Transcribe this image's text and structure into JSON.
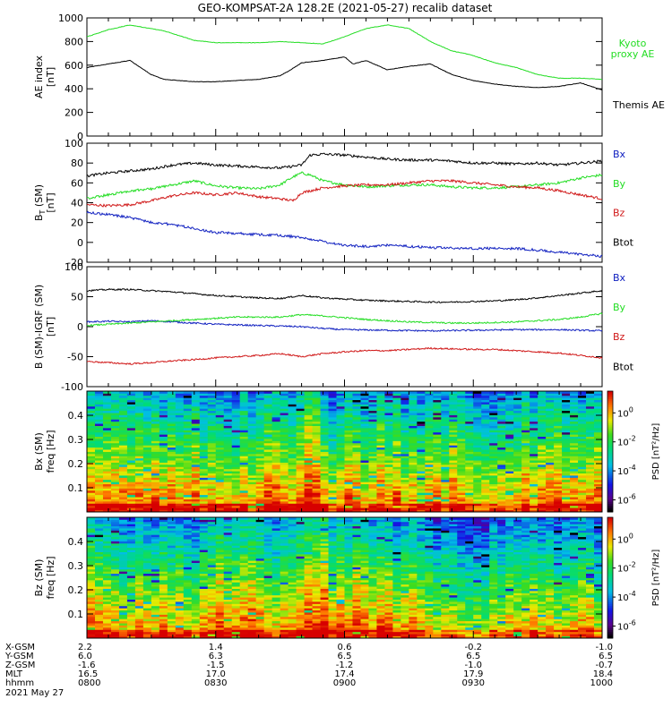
{
  "title": "GEO-KOMPSAT-2A 128.2E (2021-05-27) recalib dataset",
  "colors": {
    "black": "#000000",
    "green": "#22dd22",
    "red": "#d01818",
    "blue": "#1020c0"
  },
  "chart_data": [
    {
      "type": "line",
      "ylabel": [
        "AE index",
        "[nT]"
      ],
      "ylim": [
        0,
        1000
      ],
      "yticks": [
        0,
        200,
        400,
        600,
        800,
        1000
      ],
      "series": [
        {
          "name": "Kyoto proxy AE",
          "label_lines": [
            "Kyoto",
            "proxy AE"
          ],
          "color": "#22dd22",
          "x": [
            0,
            5,
            10,
            18,
            25,
            30,
            40,
            45,
            50,
            55,
            60,
            65,
            70,
            75,
            80,
            85,
            88,
            90,
            95,
            100,
            105,
            110,
            115,
            120
          ],
          "y": [
            840,
            900,
            940,
            890,
            810,
            790,
            790,
            800,
            790,
            780,
            840,
            910,
            940,
            910,
            800,
            720,
            700,
            680,
            620,
            580,
            520,
            490,
            490,
            480
          ]
        },
        {
          "name": "Themis AE",
          "label_lines": [
            "Themis AE"
          ],
          "color": "#000000",
          "x": [
            0,
            5,
            10,
            15,
            18,
            25,
            30,
            35,
            40,
            45,
            47,
            50,
            55,
            60,
            62,
            65,
            70,
            75,
            80,
            85,
            90,
            95,
            100,
            105,
            110,
            115,
            120
          ],
          "y": [
            580,
            610,
            640,
            520,
            480,
            460,
            460,
            470,
            480,
            510,
            550,
            620,
            640,
            670,
            610,
            640,
            560,
            590,
            610,
            520,
            470,
            440,
            420,
            410,
            420,
            450,
            390
          ]
        }
      ]
    },
    {
      "type": "line",
      "ylabel": [
        "B (SM)",
        "[nT]"
      ],
      "ylabel_sub": "T",
      "ylim": [
        -20,
        100
      ],
      "yticks": [
        -20,
        0,
        20,
        40,
        60,
        80,
        100
      ],
      "series": [
        {
          "name": "Bx",
          "color": "#1020c0",
          "x": [
            0,
            5,
            10,
            15,
            20,
            25,
            30,
            35,
            40,
            45,
            50,
            55,
            60,
            65,
            70,
            75,
            80,
            85,
            90,
            95,
            100,
            105,
            110,
            115,
            120
          ],
          "y": [
            30,
            28,
            25,
            20,
            18,
            14,
            10,
            9,
            8,
            7,
            5,
            1,
            -3,
            -4,
            -3,
            -4,
            -5,
            -6,
            -6,
            -6,
            -6,
            -8,
            -10,
            -12,
            -14
          ]
        },
        {
          "name": "By",
          "color": "#22dd22",
          "x": [
            0,
            5,
            10,
            15,
            20,
            25,
            30,
            35,
            40,
            45,
            48,
            50,
            52,
            55,
            60,
            65,
            70,
            75,
            80,
            85,
            90,
            95,
            100,
            105,
            110,
            115,
            120
          ],
          "y": [
            44,
            48,
            52,
            54,
            58,
            62,
            57,
            55,
            54,
            58,
            66,
            70,
            68,
            62,
            58,
            56,
            57,
            58,
            58,
            56,
            55,
            55,
            56,
            58,
            60,
            65,
            68
          ]
        },
        {
          "name": "Bz",
          "color": "#d01818",
          "x": [
            0,
            5,
            10,
            15,
            20,
            25,
            30,
            35,
            40,
            45,
            48,
            50,
            55,
            60,
            65,
            70,
            75,
            80,
            85,
            90,
            95,
            100,
            105,
            110,
            115,
            120
          ],
          "y": [
            38,
            37,
            38,
            42,
            47,
            50,
            48,
            50,
            46,
            44,
            42,
            50,
            55,
            57,
            58,
            58,
            60,
            62,
            62,
            60,
            58,
            56,
            55,
            52,
            48,
            44
          ]
        },
        {
          "name": "Btot",
          "color": "#000000",
          "x": [
            0,
            5,
            10,
            15,
            20,
            25,
            30,
            35,
            40,
            45,
            50,
            52,
            55,
            60,
            65,
            70,
            75,
            80,
            85,
            90,
            95,
            100,
            105,
            110,
            115,
            120
          ],
          "y": [
            67,
            70,
            72,
            74,
            78,
            80,
            78,
            77,
            76,
            75,
            78,
            88,
            89,
            88,
            86,
            84,
            83,
            83,
            82,
            80,
            80,
            79,
            80,
            78,
            80,
            82
          ]
        }
      ]
    },
    {
      "type": "line",
      "ylabel": [
        "B (SM)-IGRF (SM)",
        "[nT]"
      ],
      "ylim": [
        -100,
        100
      ],
      "yticks": [
        -100,
        -50,
        0,
        50,
        100
      ],
      "series": [
        {
          "name": "Bx",
          "color": "#1020c0",
          "x": [
            0,
            5,
            10,
            15,
            20,
            25,
            30,
            40,
            50,
            55,
            60,
            70,
            80,
            90,
            100,
            110,
            120
          ],
          "y": [
            8,
            9,
            8,
            10,
            8,
            6,
            4,
            2,
            0,
            -3,
            -5,
            -6,
            -7,
            -6,
            -5,
            -5,
            -7
          ]
        },
        {
          "name": "By",
          "color": "#22dd22",
          "x": [
            0,
            5,
            10,
            15,
            20,
            25,
            30,
            35,
            40,
            45,
            50,
            55,
            60,
            65,
            70,
            75,
            80,
            85,
            90,
            95,
            100,
            105,
            110,
            115,
            120
          ],
          "y": [
            2,
            4,
            6,
            8,
            10,
            12,
            14,
            16,
            16,
            16,
            20,
            18,
            15,
            12,
            10,
            8,
            7,
            6,
            6,
            7,
            8,
            10,
            12,
            16,
            22
          ]
        },
        {
          "name": "Bz",
          "color": "#d01818",
          "x": [
            0,
            5,
            10,
            15,
            20,
            25,
            30,
            35,
            40,
            45,
            50,
            55,
            60,
            65,
            70,
            75,
            80,
            85,
            90,
            95,
            100,
            105,
            110,
            115,
            120
          ],
          "y": [
            -58,
            -60,
            -62,
            -60,
            -57,
            -55,
            -52,
            -50,
            -48,
            -45,
            -50,
            -45,
            -42,
            -40,
            -40,
            -38,
            -36,
            -37,
            -38,
            -38,
            -40,
            -42,
            -44,
            -48,
            -52
          ]
        },
        {
          "name": "Btot",
          "color": "#000000",
          "x": [
            0,
            5,
            10,
            15,
            20,
            25,
            30,
            35,
            40,
            45,
            50,
            55,
            60,
            65,
            70,
            75,
            80,
            85,
            90,
            95,
            100,
            105,
            110,
            115,
            120
          ],
          "y": [
            60,
            62,
            62,
            60,
            58,
            55,
            52,
            50,
            48,
            47,
            52,
            48,
            46,
            44,
            43,
            42,
            41,
            41,
            42,
            43,
            45,
            48,
            52,
            56,
            60
          ]
        }
      ]
    },
    {
      "type": "heatmap",
      "ylabel": [
        "Bx (SM)",
        "freq [Hz]"
      ],
      "ylim": [
        0,
        0.5
      ],
      "yticks": [
        0.1,
        0.2,
        0.3,
        0.4
      ],
      "colorbar": {
        "label": "PSD [nT²/Hz]",
        "ticks": [
          {
            "base": "10",
            "exp": "0"
          },
          {
            "base": "10",
            "exp": "-2"
          },
          {
            "base": "10",
            "exp": "-4"
          },
          {
            "base": "10",
            "exp": "-6"
          }
        ]
      }
    },
    {
      "type": "heatmap",
      "ylabel": [
        "Bz (SM)",
        "freq [Hz]"
      ],
      "ylim": [
        0,
        0.5
      ],
      "yticks": [
        0.1,
        0.2,
        0.3,
        0.4
      ],
      "colorbar": {
        "label": "PSD [nT²/Hz]",
        "ticks": [
          {
            "base": "10",
            "exp": "0"
          },
          {
            "base": "10",
            "exp": "-2"
          },
          {
            "base": "10",
            "exp": "-4"
          },
          {
            "base": "10",
            "exp": "-6"
          }
        ]
      }
    }
  ],
  "xaxis": {
    "row_labels": [
      "X-GSM",
      "Y-GSM",
      "Z-GSM",
      "MLT",
      "hhmm"
    ],
    "columns": [
      {
        "t": 0,
        "values": [
          "2.2",
          "6.0",
          "-1.6",
          "16.5",
          "0800"
        ]
      },
      {
        "t": 30,
        "values": [
          "1.4",
          "6.3",
          "-1.5",
          "17.0",
          "0830"
        ]
      },
      {
        "t": 60,
        "values": [
          "0.6",
          "6.5",
          "-1.2",
          "17.4",
          "0900"
        ]
      },
      {
        "t": 90,
        "values": [
          "-0.2",
          "6.5",
          "-1.0",
          "17.9",
          "0930"
        ]
      },
      {
        "t": 120,
        "values": [
          "-1.0",
          "6.5",
          "-0.7",
          "18.4",
          "1000"
        ]
      }
    ],
    "date": "2021 May 27"
  }
}
